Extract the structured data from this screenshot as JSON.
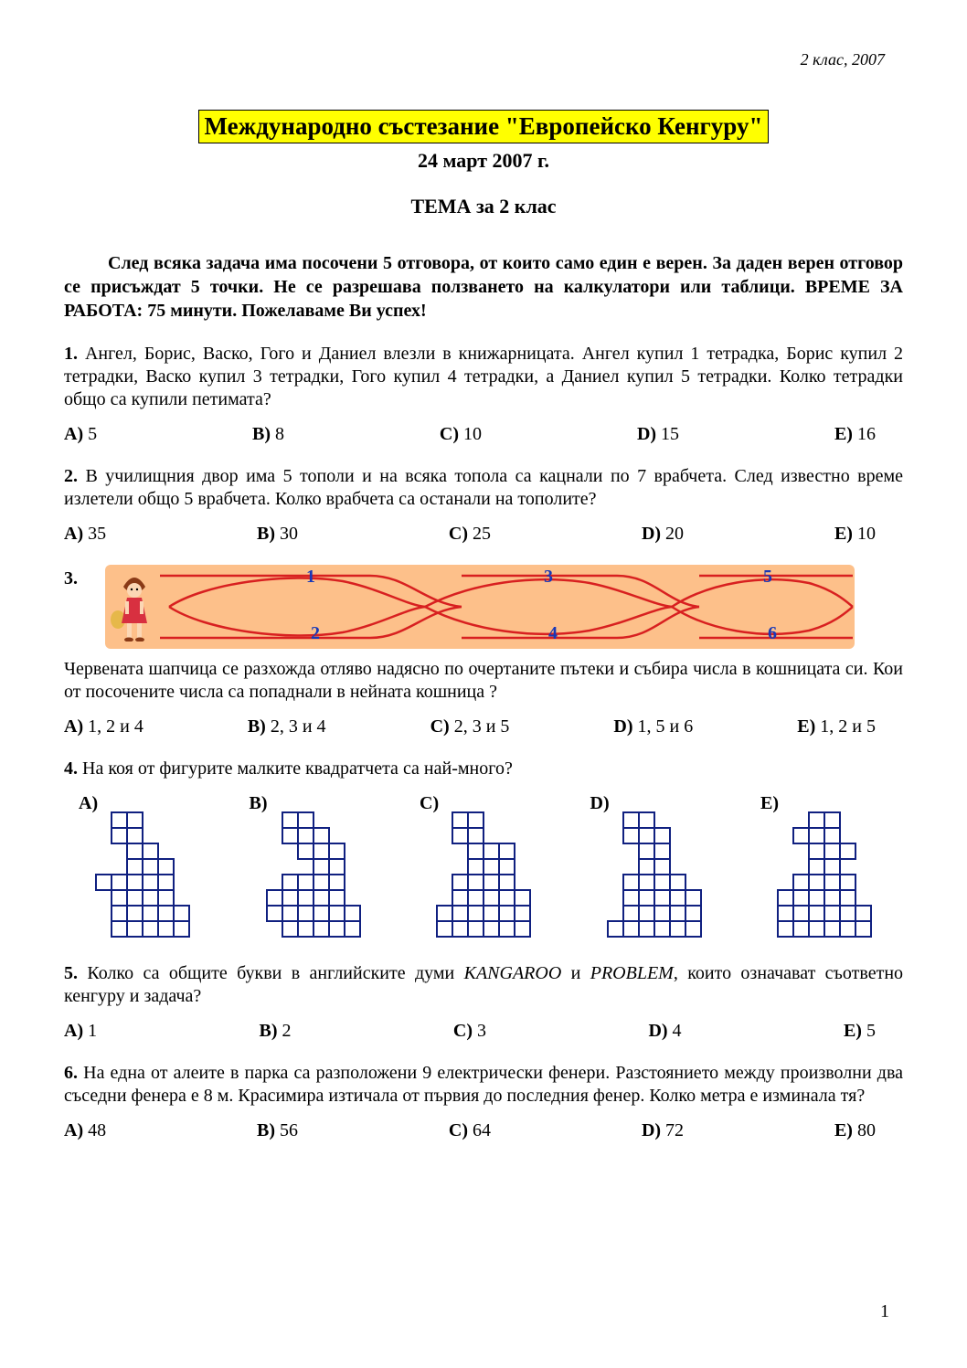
{
  "header_right": "2 клас, 2007",
  "title": "Международно състезание \"Европейско Кенгуру\"",
  "subtitle": "24 март 2007 г.",
  "subject": "ТЕМА за 2 клас",
  "instructions": "След всяка задача има посочени 5 отговора, от които само един е верен. За даден верен отговор се присъждат 5 точки. Не се разрешава ползването на калкулатори или таблици. ВРЕМЕ ЗА РАБОТА: 75 минути. Пожелаваме Ви успех!",
  "q1": {
    "num": "1.",
    "text": "Ангел, Борис, Васко, Гого и Даниел влезли в книжарницата. Ангел купил 1 тетрадка, Борис купил 2 тетрадки, Васко купил 3 тетрадки, Гого купил 4 тетрадки, а Даниел купил 5 тетрадки. Колко тетрадки общо са купили петимата?",
    "answers": {
      "A": "5",
      "B": "8",
      "C": "10",
      "D": "15",
      "E": "16"
    }
  },
  "q2": {
    "num": "2.",
    "text": "В училищния двор има 5 тополи и на всяка топола са кацнали по 7 врабчета. След известно време излетели общо 5 врабчета. Колко врабчета са останали на тополите?",
    "answers": {
      "A": "35",
      "B": "30",
      "C": "25",
      "D": "20",
      "E": "10"
    }
  },
  "q3": {
    "num": "3.",
    "text": "Червената шапчица се разхожда отляво надясно по очертаните пътеки и събира числа в кошницата си.  Кои от посочените числа са попаднали в нейната кошница ?",
    "answers": {
      "A": "1, 2 и 4",
      "B": "2, 3 и 4",
      "C": "2, 3 и 5",
      "D": "1, 5 и 6",
      "E": "1, 2 и 5"
    },
    "diagram": {
      "bg_color": "#fdc08a",
      "line_color": "#d82020",
      "label_color": "#1838b8",
      "labels": [
        "1",
        "2",
        "3",
        "4",
        "5",
        "6"
      ]
    }
  },
  "q4": {
    "num": "4.",
    "text": "На коя от фигурите малките квадратчета са най-много?",
    "labels": {
      "A": "A)",
      "B": "B)",
      "C": "C)",
      "D": "D)",
      "E": "E)"
    },
    "grid_color": "#102080",
    "cell": 17,
    "figures": {
      "A": [
        "..##....",
        "..##....",
        "...##...",
        "...###..",
        ".#####..",
        "..####..",
        "..#####.",
        "..#####."
      ],
      "B": [
        "..##....",
        "..###...",
        "...###..",
        "....##..",
        "..####..",
        ".#####..",
        ".######.",
        "..#####."
      ],
      "C": [
        "..##....",
        "..##....",
        "...###..",
        "...###..",
        "..####..",
        "..#####.",
        ".######.",
        ".######."
      ],
      "D": [
        "..##....",
        "..###...",
        "...##...",
        "...##...",
        "..####..",
        "..#####.",
        "..#####.",
        ".######."
      ],
      "E": [
        "...##...",
        "..###...",
        "...###..",
        "...##...",
        "..####..",
        ".#####..",
        ".######.",
        ".######."
      ]
    }
  },
  "q5": {
    "num": "5.",
    "text_before": "Колко са общите букви в английските думи ",
    "word1": "KANGAROO",
    "mid": " и ",
    "word2": "PROBLEM",
    "text_after": ", които означават съответно кенгуру и задача?",
    "answers": {
      "A": "1",
      "B": "2",
      "C": "3",
      "D": "4",
      "E": "5"
    }
  },
  "q6": {
    "num": "6.",
    "text": "На една от алеите в парка са разположени 9 електрически фенери. Разстоянието между произволни два съседни фенера е 8 м. Красимира изтичала от първия до последния фенер. Колко метра е изминала тя?",
    "answers": {
      "A": "48",
      "B": "56",
      "C": "64",
      "D": "72",
      "E": "80"
    }
  },
  "answer_labels": {
    "A": "A)",
    "B": "B)",
    "C": "C)",
    "D": "D)",
    "E": "E)"
  },
  "page_number": "1"
}
